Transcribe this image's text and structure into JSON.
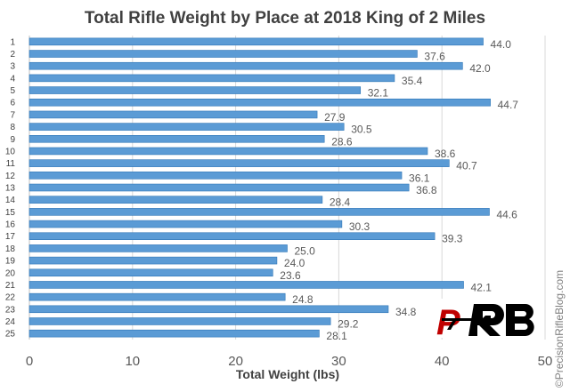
{
  "chart_data": {
    "type": "bar",
    "orientation": "horizontal",
    "title": "Total Rifle Weight by Place at 2018 King of 2 Miles",
    "xlabel": "Total Weight (lbs)",
    "ylabel": "",
    "xlim": [
      0,
      50
    ],
    "x_ticks": [
      "0",
      "10",
      "20",
      "30",
      "40",
      "50"
    ],
    "grid": "vertical",
    "legend": "none",
    "categories": [
      "1",
      "2",
      "3",
      "4",
      "5",
      "6",
      "7",
      "8",
      "9",
      "10",
      "11",
      "12",
      "13",
      "14",
      "15",
      "16",
      "17",
      "18",
      "19",
      "20",
      "21",
      "22",
      "23",
      "24",
      "25"
    ],
    "values": [
      44.0,
      37.6,
      42.0,
      35.4,
      32.1,
      44.7,
      27.9,
      30.5,
      28.6,
      38.6,
      40.7,
      36.1,
      36.8,
      28.4,
      44.6,
      30.3,
      39.3,
      25.0,
      24.0,
      23.6,
      42.1,
      24.8,
      34.8,
      29.2,
      28.1
    ],
    "value_labels": [
      "44.0",
      "37.6",
      "42.0",
      "35.4",
      "32.1",
      "44.7",
      "27.9",
      "30.5",
      "28.6",
      "38.6",
      "40.7",
      "36.1",
      "36.8",
      "28.4",
      "44.6",
      "30.3",
      "39.3",
      "25.0",
      "24.0",
      "23.6",
      "42.1",
      "24.8",
      "34.8",
      "29.2",
      "28.1"
    ],
    "bar_color": "#5B9BD5",
    "bar_edge_color": "#2E75B6"
  },
  "watermark": "©PrecisionRifleBlog.com",
  "logo": {
    "letters": [
      "P",
      "R",
      "B"
    ],
    "colors": {
      "red": "#C00000",
      "black": "#000000"
    }
  }
}
